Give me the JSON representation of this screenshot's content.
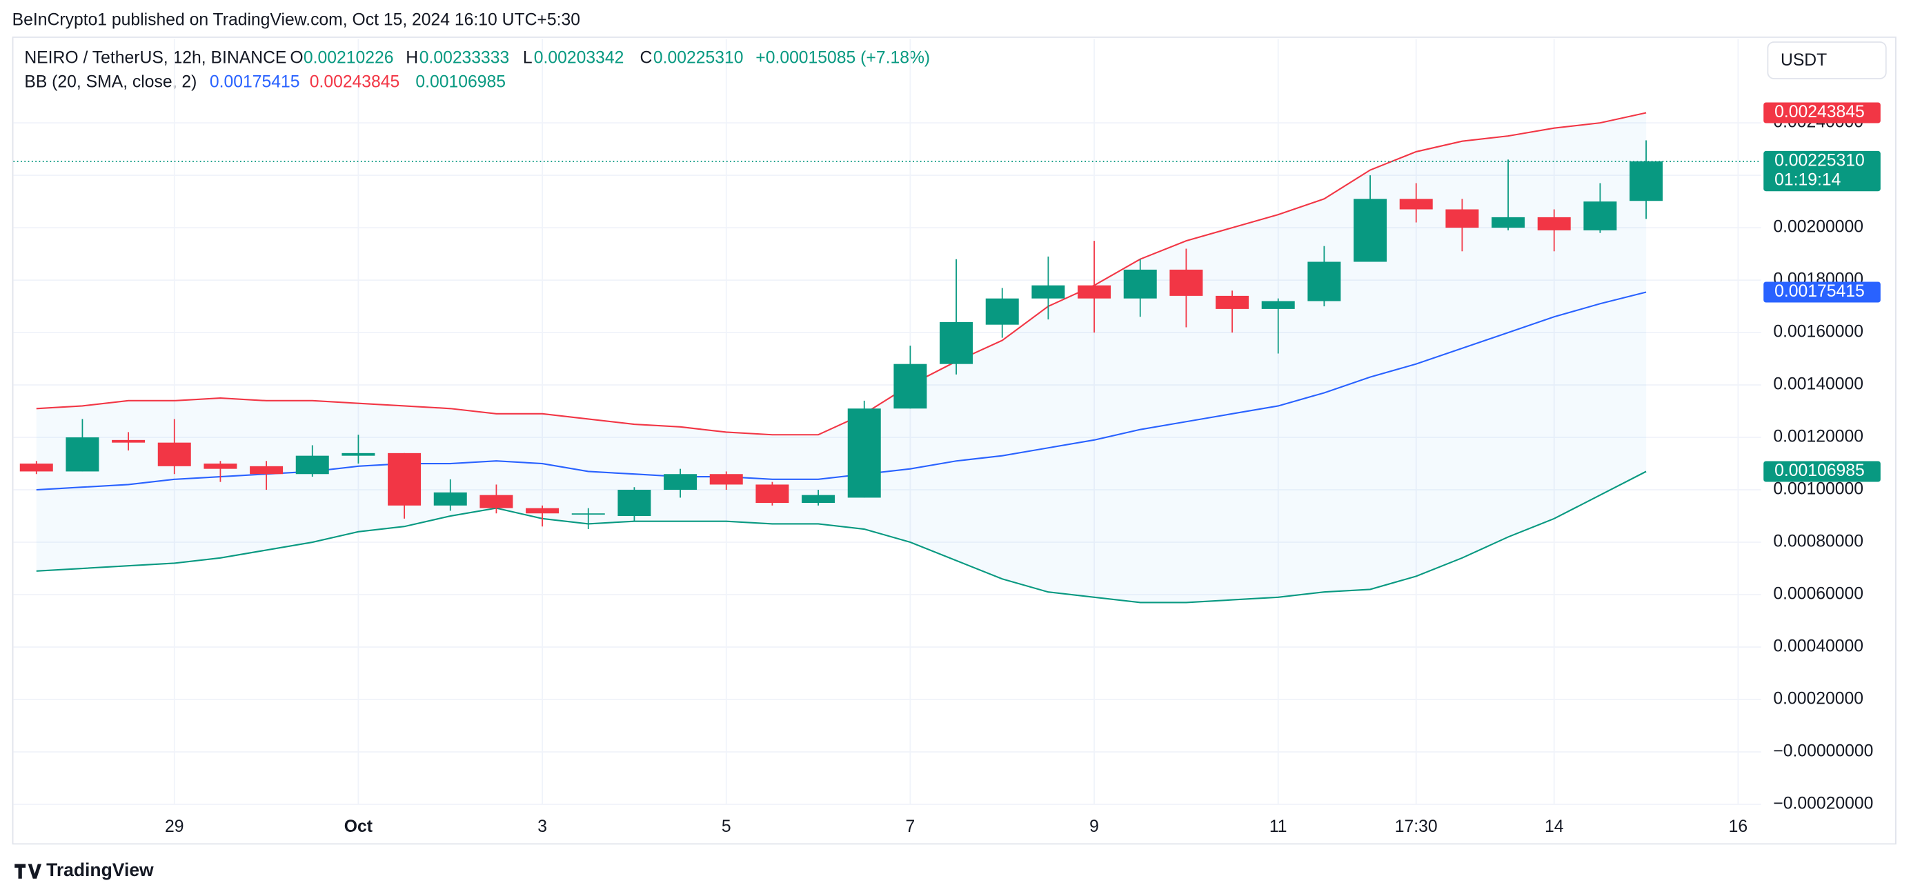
{
  "chart_data": {
    "type": "candlestick",
    "published": "BeInCrypto1 published on TradingView.com, Oct 15, 2024 16:10 UTC+5:30",
    "symbol": "NEIRO / TetherUS, 12h, BINANCE",
    "ohlc_legend": [
      {
        "key": "O",
        "label": "0.00210226"
      },
      {
        "key": "H",
        "label": "0.00233333"
      },
      {
        "key": "L",
        "label": "0.00203342"
      },
      {
        "key": "C",
        "label": "0.00225310"
      }
    ],
    "change": "+0.00015085 (+7.18%)",
    "indicator": "BB (20, SMA, close, 2)",
    "currency": "USDT",
    "countdown": "01:19:14",
    "brand": "TradingView",
    "up_color": "#089981",
    "down_color": "#f23645",
    "categories": [
      null,
      null,
      null,
      "29",
      null,
      null,
      null,
      "Oct",
      null,
      null,
      null,
      "3",
      null,
      null,
      null,
      "5",
      null,
      null,
      null,
      "7",
      null,
      null,
      null,
      "9",
      null,
      null,
      null,
      "11",
      null,
      null,
      "17:30",
      null,
      null,
      "14",
      null,
      null,
      null,
      "16"
    ],
    "open": [
      0.0011,
      0.00107,
      0.00119,
      0.00118,
      0.0011,
      0.00109,
      0.00106,
      0.00113,
      0.00114,
      0.00094,
      0.00098,
      0.00093,
      0.00091,
      0.0009,
      0.001,
      0.00106,
      0.00102,
      0.00095,
      0.00097,
      0.00131,
      0.00148,
      0.00163,
      0.00173,
      0.00178,
      0.00173,
      0.00184,
      0.00174,
      0.00169,
      0.00172,
      0.00187,
      0.00211,
      0.00207,
      0.002,
      0.00204,
      0.00199,
      0.00210226,
      null,
      null
    ],
    "high": [
      0.00111,
      0.00127,
      0.00122,
      0.00127,
      0.00111,
      0.00111,
      0.00117,
      0.00121,
      0.00114,
      0.00104,
      0.00102,
      0.00094,
      0.00093,
      0.00101,
      0.00108,
      0.00107,
      0.00103,
      0.001,
      0.00134,
      0.00155,
      0.00188,
      0.00177,
      0.00189,
      0.00195,
      0.00188,
      0.00192,
      0.00176,
      0.00173,
      0.00193,
      0.0022,
      0.00217,
      0.00211,
      0.00226,
      0.00207,
      0.00217,
      0.00233333,
      null,
      null
    ],
    "low": [
      0.00106,
      0.00107,
      0.00115,
      0.00106,
      0.00103,
      0.001,
      0.00105,
      0.0011,
      0.00089,
      0.00092,
      0.00091,
      0.00086,
      0.00085,
      0.00088,
      0.00097,
      0.001,
      0.00094,
      0.00094,
      0.00097,
      0.00131,
      0.00144,
      0.00158,
      0.00165,
      0.0016,
      0.00166,
      0.00162,
      0.0016,
      0.00152,
      0.0017,
      0.00187,
      0.00202,
      0.00191,
      0.00199,
      0.00191,
      0.00198,
      0.00203342,
      null,
      null
    ],
    "close": [
      0.00107,
      0.0012,
      0.00118,
      0.00109,
      0.00108,
      0.00106,
      0.00113,
      0.00114,
      0.00094,
      0.00099,
      0.00093,
      0.00091,
      0.00091,
      0.001,
      0.00106,
      0.00102,
      0.00095,
      0.00098,
      0.00131,
      0.00148,
      0.00164,
      0.00173,
      0.00178,
      0.00173,
      0.00184,
      0.00174,
      0.00169,
      0.00172,
      0.00187,
      0.00211,
      0.00207,
      0.002,
      0.00204,
      0.00199,
      0.0021,
      0.0022531,
      null,
      null
    ],
    "series": [
      {
        "name": "basis",
        "color": "#2962ff",
        "label": "0.00175415",
        "values": [
          0.001,
          0.00101,
          0.00102,
          0.00104,
          0.00105,
          0.00106,
          0.00107,
          0.00109,
          0.0011,
          0.0011,
          0.00111,
          0.0011,
          0.00107,
          0.00106,
          0.00105,
          0.00105,
          0.00104,
          0.00104,
          0.00106,
          0.00108,
          0.00111,
          0.00113,
          0.00116,
          0.00119,
          0.00123,
          0.00126,
          0.00129,
          0.00132,
          0.00137,
          0.00143,
          0.00148,
          0.00154,
          0.0016,
          0.00166,
          0.00171,
          0.00175415,
          null,
          null
        ]
      },
      {
        "name": "upper",
        "color": "#f23645",
        "label": "0.00243845",
        "values": [
          0.00131,
          0.00132,
          0.00134,
          0.00134,
          0.00135,
          0.00134,
          0.00134,
          0.00133,
          0.00132,
          0.00131,
          0.00129,
          0.00129,
          0.00127,
          0.00125,
          0.00124,
          0.00122,
          0.00121,
          0.00121,
          0.00129,
          0.0014,
          0.00149,
          0.00157,
          0.0017,
          0.00178,
          0.00188,
          0.00195,
          0.002,
          0.00205,
          0.00211,
          0.00222,
          0.00229,
          0.00233,
          0.00235,
          0.00238,
          0.0024,
          0.00243845,
          null,
          null
        ]
      },
      {
        "name": "lower",
        "color": "#089981",
        "label": "0.00106985",
        "values": [
          0.00069,
          0.0007,
          0.00071,
          0.00072,
          0.00074,
          0.00077,
          0.0008,
          0.00084,
          0.00086,
          0.0009,
          0.00093,
          0.00089,
          0.00087,
          0.00088,
          0.00088,
          0.00088,
          0.00087,
          0.00087,
          0.00085,
          0.0008,
          0.00073,
          0.00066,
          0.00061,
          0.00059,
          0.00057,
          0.00057,
          0.00058,
          0.00059,
          0.00061,
          0.00062,
          0.00067,
          0.00074,
          0.00082,
          0.00089,
          0.00098,
          0.00106985,
          null,
          null
        ]
      }
    ],
    "ylim": [
      -0.0002,
      0.00272
    ],
    "yticks": [
      {
        "value": -0.0002,
        "label": "−0.00020000"
      },
      {
        "value": 0,
        "label": "−0.00000000"
      },
      {
        "value": 0.0002,
        "label": "0.00020000"
      },
      {
        "value": 0.0004,
        "label": "0.00040000"
      },
      {
        "value": 0.0006,
        "label": "0.00060000"
      },
      {
        "value": 0.0008,
        "label": "0.00080000"
      },
      {
        "value": 0.001,
        "label": "0.00100000"
      },
      {
        "value": 0.0012,
        "label": "0.00120000"
      },
      {
        "value": 0.0014,
        "label": "0.00140000"
      },
      {
        "value": 0.0016,
        "label": "0.00160000"
      },
      {
        "value": 0.0018,
        "label": "0.00180000"
      },
      {
        "value": 0.002,
        "label": "0.00200000"
      },
      {
        "value": 0.0022,
        "label": "0.00220000"
      },
      {
        "value": 0.0024,
        "label": "0.00240000"
      }
    ],
    "grid": true
  }
}
